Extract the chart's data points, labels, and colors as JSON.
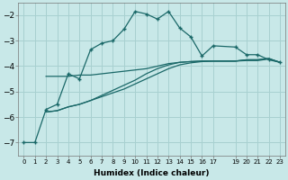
{
  "xlabel": "Humidex (Indice chaleur)",
  "bg_color": "#c8e8e8",
  "grid_color": "#a8d0d0",
  "line_color": "#1a6868",
  "xlim": [
    -0.5,
    23.5
  ],
  "ylim": [
    -7.5,
    -1.5
  ],
  "yticks": [
    -7,
    -6,
    -5,
    -4,
    -3,
    -2
  ],
  "xtick_positions": [
    0,
    1,
    2,
    3,
    4,
    5,
    6,
    7,
    8,
    9,
    10,
    11,
    12,
    13,
    14,
    15,
    16,
    17,
    19,
    20,
    21,
    22,
    23
  ],
  "xtick_labels": [
    "0",
    "1",
    "2",
    "3",
    "4",
    "5",
    "6",
    "7",
    "8",
    "9",
    "10",
    "11",
    "12",
    "13",
    "14",
    "15",
    "16",
    "17",
    "19",
    "20",
    "21",
    "22",
    "23"
  ],
  "s1_x": [
    0,
    1,
    2,
    3,
    4,
    5,
    6,
    7,
    8,
    9,
    10,
    11,
    12,
    13,
    14,
    15,
    16,
    17,
    19,
    20,
    21,
    22,
    23
  ],
  "s1_y": [
    -7.0,
    -7.0,
    -5.7,
    -5.5,
    -4.3,
    -4.5,
    -3.35,
    -3.1,
    -3.0,
    -2.55,
    -1.85,
    -1.95,
    -2.15,
    -1.85,
    -2.5,
    -2.85,
    -3.6,
    -3.2,
    -3.25,
    -3.55,
    -3.55,
    -3.75,
    -3.85
  ],
  "s2_x": [
    2,
    3,
    4,
    5,
    6,
    7,
    8,
    9,
    10,
    11,
    12,
    13,
    14,
    15,
    16,
    17,
    19,
    20,
    21,
    22,
    23
  ],
  "s2_y": [
    -4.4,
    -4.4,
    -4.4,
    -4.35,
    -4.35,
    -4.3,
    -4.25,
    -4.2,
    -4.15,
    -4.1,
    -4.0,
    -3.9,
    -3.85,
    -3.82,
    -3.8,
    -3.8,
    -3.8,
    -3.78,
    -3.78,
    -3.72,
    -3.85
  ],
  "s3_x": [
    2,
    3,
    4,
    5,
    6,
    7,
    8,
    9,
    10,
    11,
    12,
    13,
    14,
    15,
    16,
    17,
    19,
    20,
    21,
    22,
    23
  ],
  "s3_y": [
    -5.8,
    -5.75,
    -5.6,
    -5.5,
    -5.35,
    -5.2,
    -5.05,
    -4.9,
    -4.7,
    -4.5,
    -4.3,
    -4.1,
    -3.95,
    -3.87,
    -3.82,
    -3.8,
    -3.8,
    -3.75,
    -3.75,
    -3.7,
    -3.85
  ],
  "s4_x": [
    2,
    3,
    4,
    5,
    6,
    7,
    8,
    9,
    10,
    11,
    12,
    13,
    14,
    15,
    16,
    17,
    19,
    20,
    21,
    22,
    23
  ],
  "s4_y": [
    -5.8,
    -5.75,
    -5.6,
    -5.5,
    -5.35,
    -5.15,
    -4.95,
    -4.75,
    -4.55,
    -4.3,
    -4.1,
    -3.95,
    -3.85,
    -3.82,
    -3.8,
    -3.8,
    -3.8,
    -3.75,
    -3.75,
    -3.7,
    -3.85
  ]
}
